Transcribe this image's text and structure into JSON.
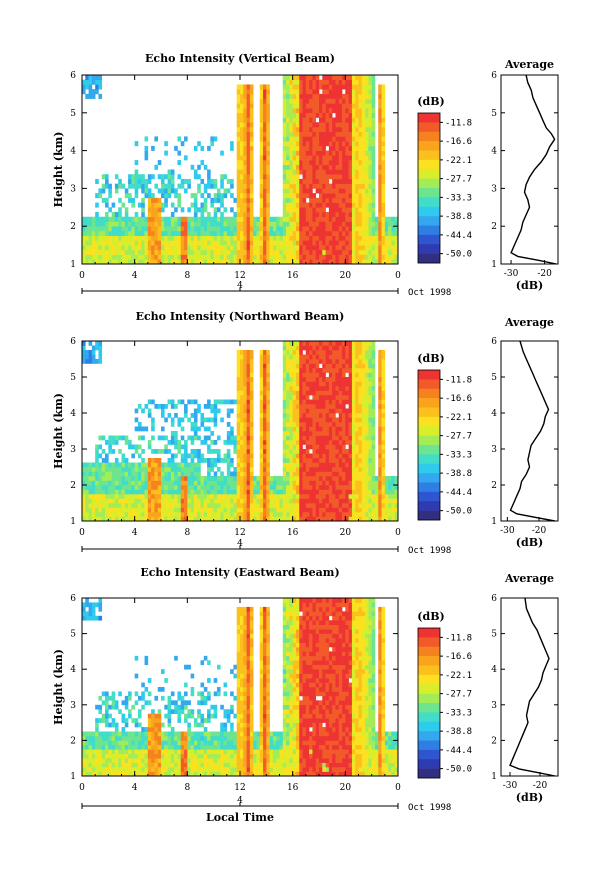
{
  "chart_data": [
    {
      "type": "heatmap",
      "title": "Echo Intensity (Vertical Beam)",
      "xlabel": "",
      "ylabel": "Height (km)",
      "xlim": [
        0,
        24
      ],
      "ylim": [
        1,
        6
      ],
      "x_ticks": [
        "0",
        "4",
        "8",
        "12",
        "16",
        "20",
        "0"
      ],
      "y_ticks": [
        "1",
        "2",
        "3",
        "4",
        "5",
        "6"
      ],
      "date_label": "Oct 1998",
      "date_mark": "4",
      "colorbar": {
        "unit": "(dB)",
        "labels": [
          "-11.8",
          "-16.6",
          "-22.1",
          "-27.7",
          "-33.3",
          "-38.8",
          "-44.4",
          "-50.0"
        ]
      },
      "average_profile": {
        "title": "Average",
        "xlabel": "(dB)",
        "x_ticks": [
          "-30",
          "-20"
        ],
        "xlim": [
          -33,
          -16
        ],
        "points": [
          [
            -16.5,
            1.0
          ],
          [
            -22,
            1.1
          ],
          [
            -28,
            1.2
          ],
          [
            -30,
            1.3
          ],
          [
            -29,
            1.5
          ],
          [
            -28,
            1.7
          ],
          [
            -27,
            1.9
          ],
          [
            -26.5,
            2.1
          ],
          [
            -25.5,
            2.3
          ],
          [
            -24.5,
            2.5
          ],
          [
            -25,
            2.7
          ],
          [
            -26,
            2.9
          ],
          [
            -25.5,
            3.1
          ],
          [
            -24.5,
            3.3
          ],
          [
            -23,
            3.5
          ],
          [
            -21,
            3.7
          ],
          [
            -19.5,
            3.9
          ],
          [
            -18.5,
            4.1
          ],
          [
            -17,
            4.3
          ],
          [
            -18,
            4.45
          ],
          [
            -19.5,
            4.6
          ],
          [
            -20.5,
            4.8
          ],
          [
            -21.5,
            5.0
          ],
          [
            -22.5,
            5.2
          ],
          [
            -23.5,
            5.4
          ],
          [
            -24,
            5.6
          ],
          [
            -25,
            5.8
          ],
          [
            -25.5,
            6.0
          ]
        ]
      }
    },
    {
      "type": "heatmap",
      "title": "Echo Intensity (Northward Beam)",
      "xlabel": "",
      "ylabel": "Height (km)",
      "xlim": [
        0,
        24
      ],
      "ylim": [
        1,
        6
      ],
      "x_ticks": [
        "0",
        "4",
        "8",
        "12",
        "16",
        "20",
        "0"
      ],
      "y_ticks": [
        "1",
        "2",
        "3",
        "4",
        "5",
        "6"
      ],
      "date_label": "Oct 1998",
      "date_mark": "4",
      "colorbar": {
        "unit": "(dB)",
        "labels": [
          "-11.8",
          "-16.6",
          "-22.1",
          "-27.7",
          "-33.3",
          "-38.8",
          "-44.4",
          "-50.0"
        ]
      },
      "average_profile": {
        "title": "Average",
        "xlabel": "(dB)",
        "x_ticks": [
          "-30",
          "-20"
        ],
        "xlim": [
          -32,
          -14
        ],
        "points": [
          [
            -15,
            1.0
          ],
          [
            -21,
            1.1
          ],
          [
            -27,
            1.2
          ],
          [
            -29,
            1.3
          ],
          [
            -28,
            1.5
          ],
          [
            -27,
            1.7
          ],
          [
            -26,
            1.9
          ],
          [
            -25.5,
            2.1
          ],
          [
            -24,
            2.3
          ],
          [
            -23,
            2.5
          ],
          [
            -23.5,
            2.7
          ],
          [
            -23,
            2.9
          ],
          [
            -22.5,
            3.1
          ],
          [
            -21,
            3.3
          ],
          [
            -19.5,
            3.5
          ],
          [
            -18.5,
            3.7
          ],
          [
            -18,
            3.9
          ],
          [
            -17,
            4.1
          ],
          [
            -18,
            4.3
          ],
          [
            -19,
            4.5
          ],
          [
            -20,
            4.7
          ],
          [
            -21,
            4.9
          ],
          [
            -22,
            5.1
          ],
          [
            -23,
            5.3
          ],
          [
            -24,
            5.5
          ],
          [
            -25,
            5.7
          ],
          [
            -26,
            6.0
          ]
        ]
      }
    },
    {
      "type": "heatmap",
      "title": "Echo Intensity (Eastward Beam)",
      "xlabel": "Local Time",
      "ylabel": "Height (km)",
      "xlim": [
        0,
        24
      ],
      "ylim": [
        1,
        6
      ],
      "x_ticks": [
        "0",
        "4",
        "8",
        "12",
        "16",
        "20",
        "0"
      ],
      "y_ticks": [
        "1",
        "2",
        "3",
        "4",
        "5",
        "6"
      ],
      "date_label": "Oct 1998",
      "date_mark": "4",
      "colorbar": {
        "unit": "(dB)",
        "labels": [
          "-11.8",
          "-16.6",
          "-22.1",
          "-27.7",
          "-33.3",
          "-38.8",
          "-44.4",
          "-50.0"
        ]
      },
      "average_profile": {
        "title": "Average",
        "xlabel": "(dB)",
        "x_ticks": [
          "-30",
          "-20"
        ],
        "xlim": [
          -33,
          -14
        ],
        "points": [
          [
            -15,
            1.0
          ],
          [
            -21,
            1.1
          ],
          [
            -27,
            1.2
          ],
          [
            -30,
            1.3
          ],
          [
            -29,
            1.5
          ],
          [
            -28,
            1.7
          ],
          [
            -27,
            1.9
          ],
          [
            -26,
            2.1
          ],
          [
            -25,
            2.3
          ],
          [
            -24,
            2.5
          ],
          [
            -24.5,
            2.7
          ],
          [
            -24,
            2.9
          ],
          [
            -23.5,
            3.1
          ],
          [
            -22,
            3.3
          ],
          [
            -20.5,
            3.5
          ],
          [
            -19.5,
            3.7
          ],
          [
            -19,
            3.9
          ],
          [
            -18,
            4.1
          ],
          [
            -17,
            4.3
          ],
          [
            -18,
            4.5
          ],
          [
            -19,
            4.7
          ],
          [
            -20,
            4.9
          ],
          [
            -21,
            5.1
          ],
          [
            -22.5,
            5.3
          ],
          [
            -23.5,
            5.5
          ],
          [
            -24.5,
            5.7
          ],
          [
            -25,
            6.0
          ]
        ]
      }
    }
  ],
  "colors": {
    "scale": [
      "#ee3333",
      "#f25a2a",
      "#f6821f",
      "#f9a41c",
      "#fcc01d",
      "#fbe11f",
      "#d8ee2b",
      "#a3ec57",
      "#6de48f",
      "#41ddc9",
      "#2ecbec",
      "#33a8ee",
      "#2f7ee4",
      "#2f55d0",
      "#2f3bb0",
      "#332f80"
    ]
  }
}
